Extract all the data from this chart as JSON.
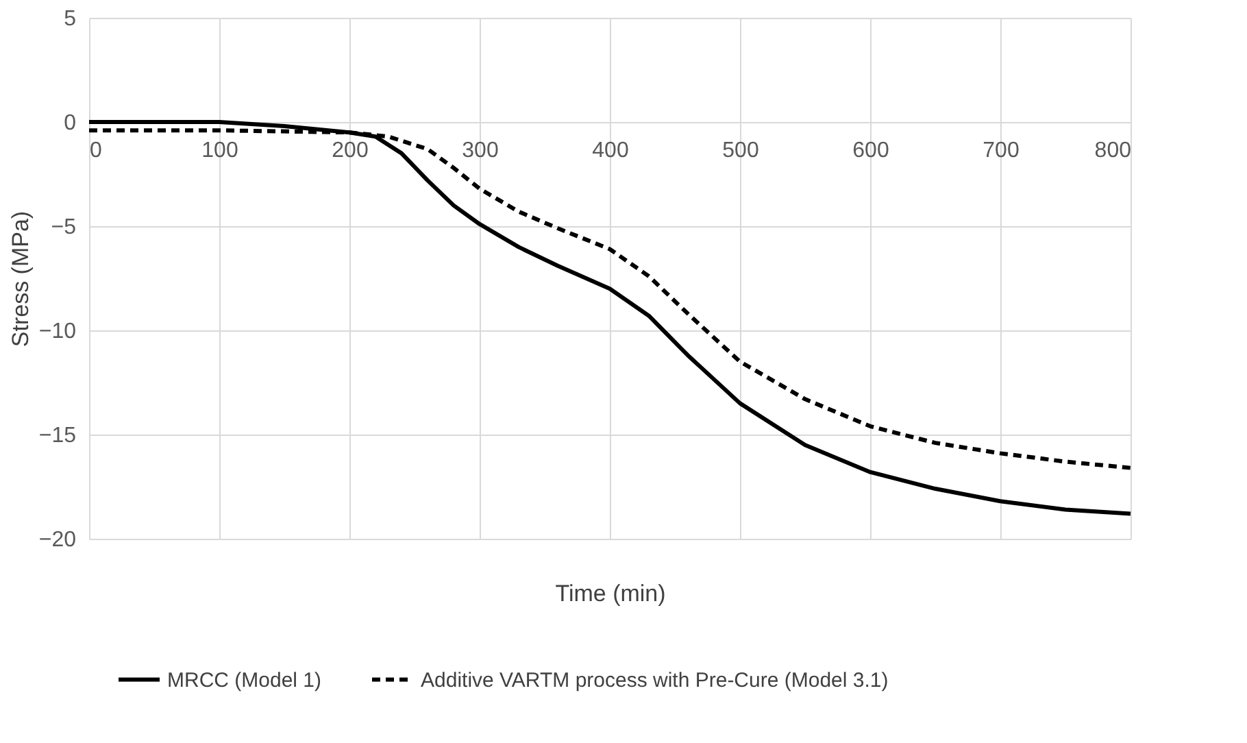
{
  "chart_data": {
    "type": "line",
    "xlabel": "Time (min)",
    "ylabel": "Stress (MPa)",
    "xlim": [
      0,
      800
    ],
    "xticks": [
      0,
      100,
      200,
      300,
      400,
      500,
      600,
      700,
      800
    ],
    "ylim": [
      -20,
      5
    ],
    "yticks": [
      -20,
      -15,
      -10,
      -5,
      0,
      5
    ],
    "grid": true,
    "legend": "bottom",
    "marker": "none",
    "series": [
      {
        "name": "MRCC (Model 1)",
        "color": "#000000",
        "line_style": "solid",
        "x": [
          0,
          100,
          150,
          200,
          220,
          240,
          260,
          280,
          300,
          330,
          360,
          400,
          430,
          460,
          500,
          550,
          600,
          650,
          700,
          750,
          800
        ],
        "values": [
          0,
          0,
          -0.2,
          -0.5,
          -0.7,
          -1.5,
          -2.8,
          -4,
          -4.9,
          -6,
          -6.9,
          -8,
          -9.3,
          -11.2,
          -13.5,
          -15.5,
          -16.8,
          -17.6,
          -18.2,
          -18.6,
          -18.8
        ]
      },
      {
        "name": "Additive VARTM process with Pre-Cure (Model 3.1)",
        "color": "#000000",
        "line_style": "dashed",
        "x": [
          0,
          100,
          200,
          230,
          260,
          280,
          300,
          330,
          360,
          400,
          430,
          460,
          500,
          550,
          600,
          650,
          700,
          750,
          800
        ],
        "values": [
          -0.4,
          -0.4,
          -0.5,
          -0.7,
          -1.3,
          -2.2,
          -3.2,
          -4.3,
          -5.1,
          -6.1,
          -7.4,
          -9.2,
          -11.5,
          -13.3,
          -14.6,
          -15.4,
          -15.9,
          -16.3,
          -16.6
        ]
      }
    ]
  }
}
